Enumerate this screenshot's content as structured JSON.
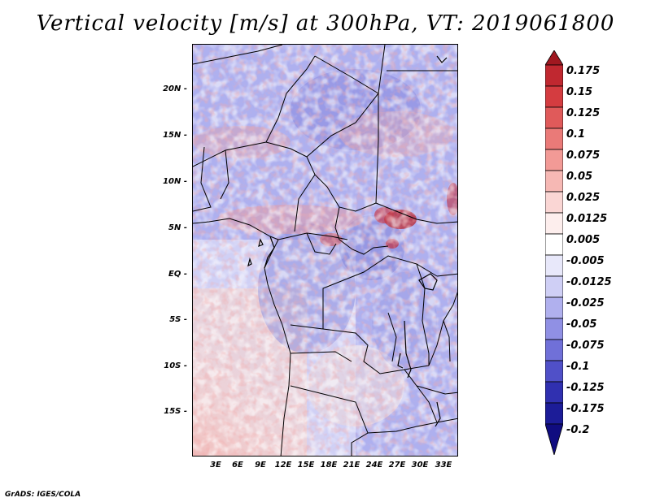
{
  "title": "Vertical velocity [m/s] at 300hPa, VT: 2019061800",
  "credit": "GrADS: IGES/COLA",
  "map": {
    "lat_ticks": [
      "20N",
      "15N",
      "10N",
      "5N",
      "EQ",
      "5S",
      "10S",
      "15S"
    ],
    "lon_ticks": [
      "3E",
      "6E",
      "9E",
      "12E",
      "15E",
      "18E",
      "21E",
      "24E",
      "27E",
      "30E",
      "33E"
    ]
  },
  "colorbar": {
    "labels": [
      "0.175",
      "0.15",
      "0.125",
      "0.1",
      "0.075",
      "0.05",
      "0.025",
      "0.0125",
      "0.005",
      "-0.005",
      "-0.0125",
      "-0.025",
      "-0.05",
      "-0.075",
      "-0.1",
      "-0.125",
      "-0.175",
      "-0.2"
    ],
    "colors": [
      "#a01820",
      "#c02830",
      "#d43c40",
      "#e05a5a",
      "#ea7a78",
      "#f29a96",
      "#f6b8b4",
      "#fad6d4",
      "#fdeeed",
      "#ffffff",
      "#e8e8fa",
      "#cfcff5",
      "#b0b0ee",
      "#9090e4",
      "#7070d8",
      "#5050c8",
      "#3030b0",
      "#1c1c98",
      "#100c80"
    ]
  }
}
